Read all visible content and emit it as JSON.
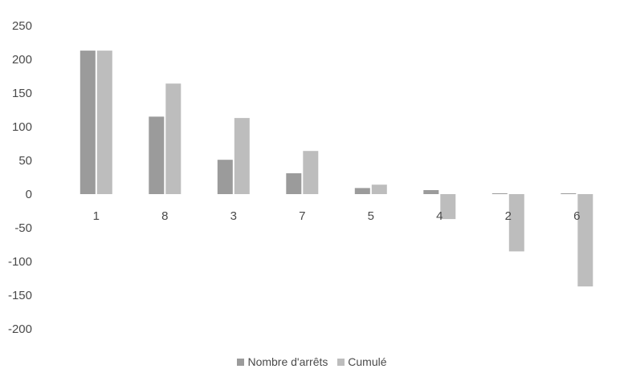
{
  "chart_data": {
    "type": "bar",
    "categories": [
      "1",
      "8",
      "3",
      "7",
      "5",
      "4",
      "2",
      "6"
    ],
    "series": [
      {
        "name": "Nombre d'arrêts",
        "color": "#9b9b9b",
        "values": [
          213,
          115,
          51,
          31,
          9,
          6,
          1,
          1
        ]
      },
      {
        "name": "Cumulé",
        "color": "#bdbdbd",
        "values": [
          213,
          164,
          113,
          64,
          14,
          -37,
          -85,
          -137
        ]
      }
    ],
    "yticks": [
      250,
      200,
      150,
      100,
      50,
      0,
      -50,
      -100,
      -150,
      -200
    ],
    "ylim": [
      -200,
      250
    ],
    "title": "",
    "xlabel": "",
    "ylabel": "",
    "grid": false,
    "legend": "bottom"
  }
}
